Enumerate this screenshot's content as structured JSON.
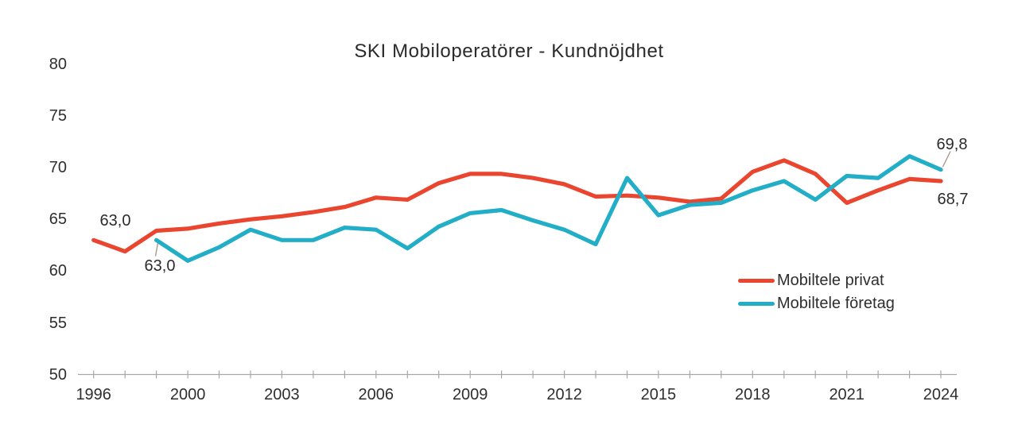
{
  "title": "SKI Mobiloperatörer - Kundnöjdhet",
  "colors": {
    "privat": "#e9452f",
    "foretag": "#21aec6",
    "axis": "#a8a8a8",
    "text": "#2e2e2e",
    "leader": "#a98f87"
  },
  "y_axis": {
    "ticks": [
      "80",
      "75",
      "70",
      "65",
      "60",
      "55",
      "50"
    ]
  },
  "x_axis": {
    "labels": [
      "1996",
      "2000",
      "2003",
      "2006",
      "2009",
      "2012",
      "2015",
      "2018",
      "2021",
      "2024"
    ]
  },
  "legend": {
    "items": [
      "Mobiltele privat",
      "Mobiltele företag"
    ]
  },
  "chart_data": {
    "type": "line",
    "title": "SKI Mobiloperatörer - Kundnöjdhet",
    "categories": [
      "1996",
      "1998",
      "1999",
      "2000",
      "2001",
      "2002",
      "2003",
      "2004",
      "2005",
      "2006",
      "2007",
      "2008",
      "2009",
      "2010",
      "2011",
      "2012",
      "2013",
      "2014",
      "2015",
      "2016",
      "2017",
      "2018",
      "2019",
      "2020",
      "2021",
      "2022",
      "2023",
      "2024"
    ],
    "series": [
      {
        "name": "Mobiltele privat",
        "color_key": "privat",
        "values": [
          63.0,
          61.9,
          63.9,
          64.1,
          64.6,
          65.0,
          65.3,
          65.7,
          66.2,
          67.1,
          66.9,
          68.5,
          69.4,
          69.4,
          69.0,
          68.4,
          67.2,
          67.3,
          67.1,
          66.7,
          67.0,
          69.6,
          70.7,
          69.4,
          66.6,
          67.8,
          68.9,
          68.7
        ]
      },
      {
        "name": "Mobiltele företag",
        "color_key": "foretag",
        "values": [
          null,
          null,
          63.0,
          61.0,
          62.3,
          64.0,
          63.0,
          63.0,
          64.2,
          64.0,
          62.2,
          64.3,
          65.6,
          65.9,
          64.9,
          64.0,
          62.6,
          69.0,
          65.4,
          66.4,
          66.6,
          67.8,
          68.7,
          66.9,
          69.2,
          69.0,
          71.1,
          69.8
        ]
      }
    ],
    "point_labels": [
      {
        "series": "Mobiltele privat",
        "category": "1996",
        "text": "63,0"
      },
      {
        "series": "Mobiltele företag",
        "category": "1999",
        "text": "63,0"
      },
      {
        "series": "Mobiltele företag",
        "category": "2024",
        "text": "69,8"
      },
      {
        "series": "Mobiltele privat",
        "category": "2024",
        "text": "68,7"
      }
    ],
    "ylim": [
      50,
      80
    ],
    "y_tick_step": 5,
    "grid": false,
    "x_label_every": 3,
    "legend_position": "middle-right"
  }
}
